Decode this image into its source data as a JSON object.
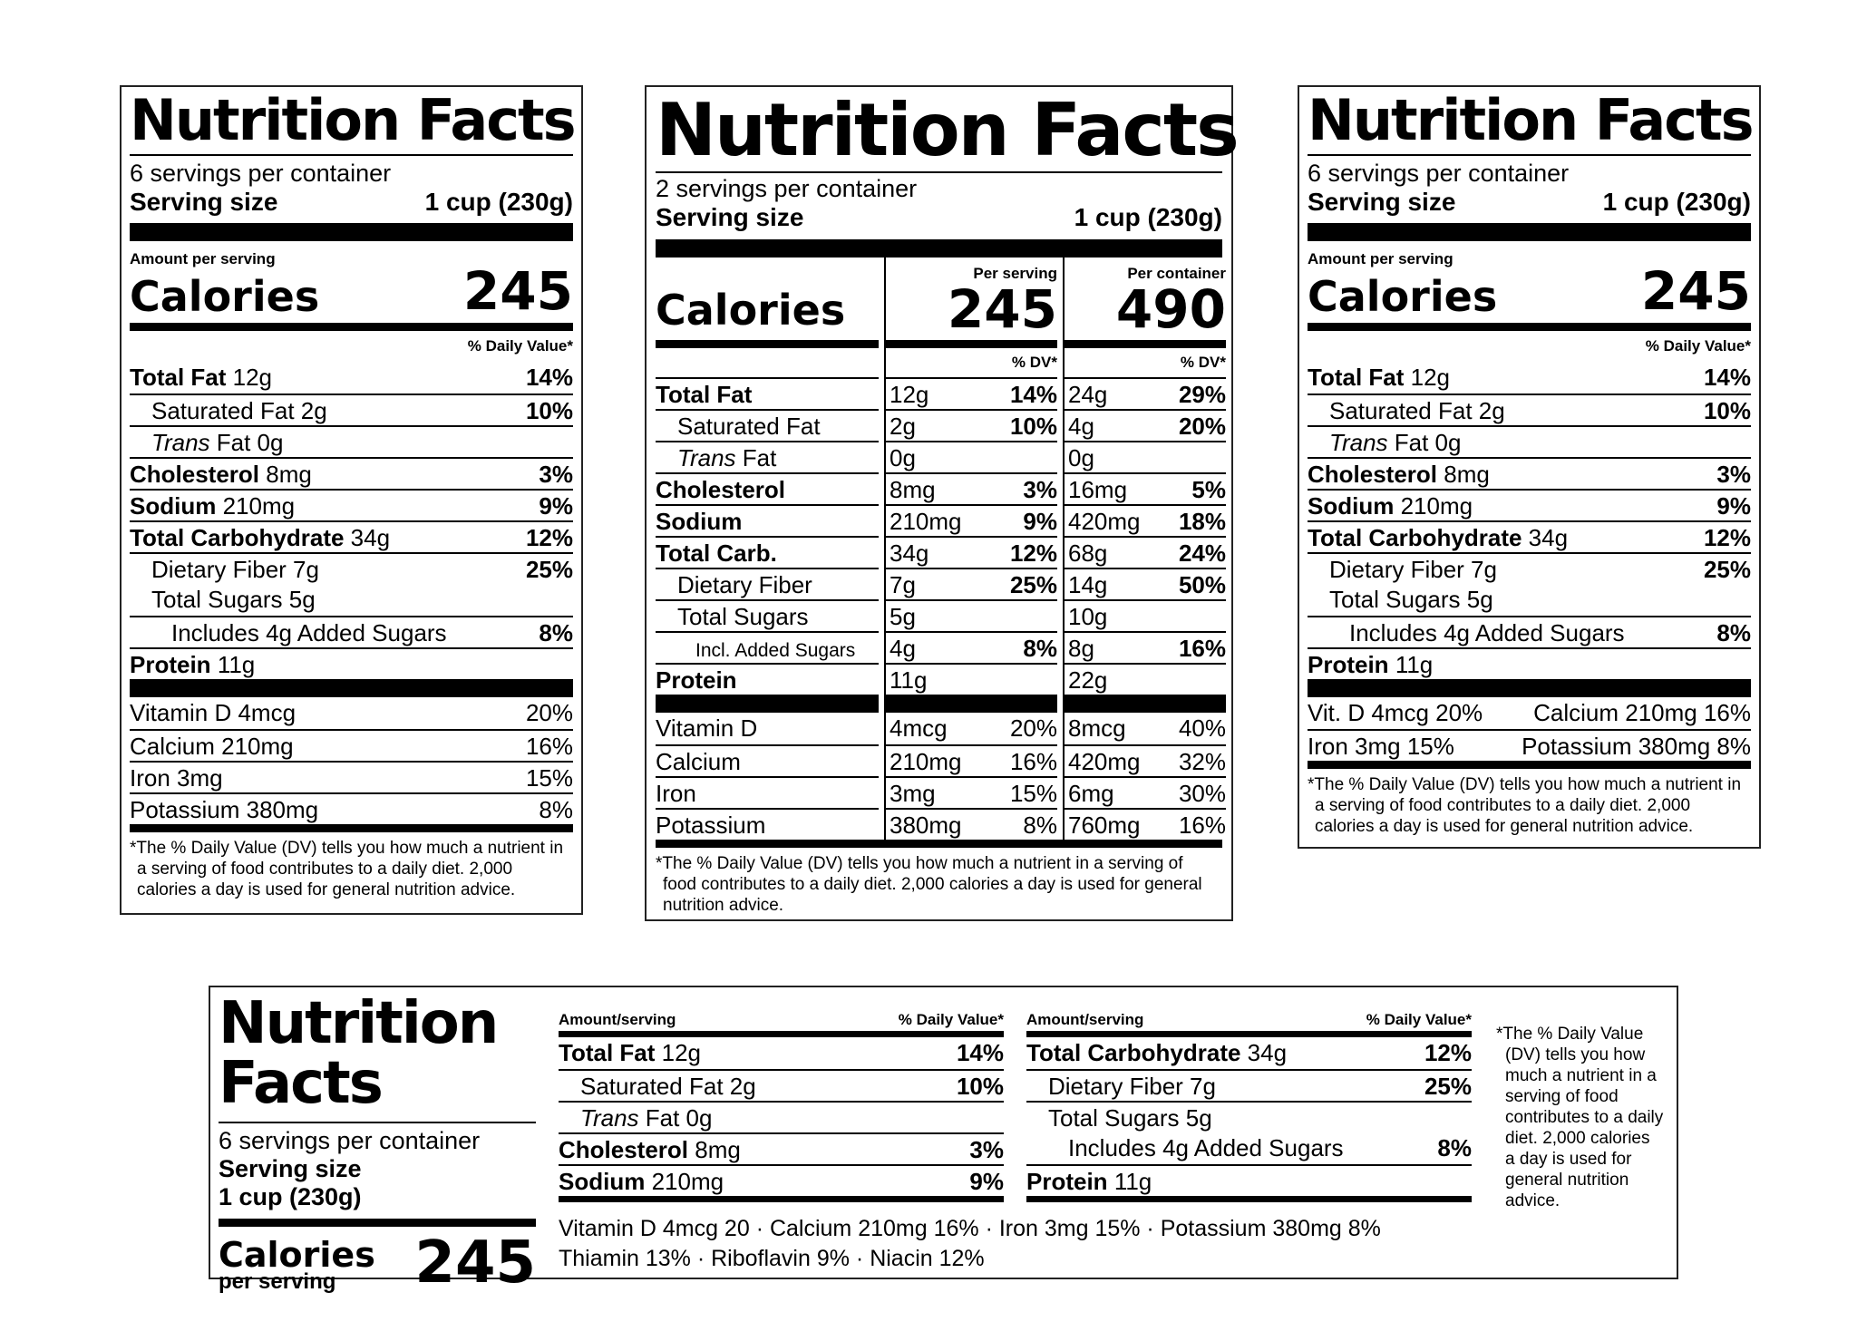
{
  "labels": {
    "standard": {
      "title": "Nutrition Facts",
      "servings": "6 servings per container",
      "serving_size_label": "Serving size",
      "serving_size_value": "1 cup (230g)",
      "amount_per_serving": "Amount per serving",
      "calories_label": "Calories",
      "calories_value": "245",
      "dv_header": "% Daily Value*",
      "nutrients": [
        {
          "name": "Total Fat",
          "amount": "12g",
          "dv": "14%"
        },
        {
          "name": "Saturated Fat 2g",
          "amount": "",
          "dv": "10%"
        },
        {
          "name": "Trans",
          "amount": "Fat 0g",
          "dv": ""
        },
        {
          "name": "Cholesterol",
          "amount": "8mg",
          "dv": "3%"
        },
        {
          "name": "Sodium",
          "amount": "210mg",
          "dv": "9%"
        },
        {
          "name": "Total Carbohydrate",
          "amount": "34g",
          "dv": "12%"
        },
        {
          "name": "Dietary Fiber 7g",
          "amount": "",
          "dv": "25%"
        },
        {
          "name": "Total Sugars 5g",
          "amount": "",
          "dv": ""
        },
        {
          "name": "Includes 4g Added Sugars",
          "amount": "",
          "dv": "8%"
        },
        {
          "name": "Protein",
          "amount": "11g",
          "dv": ""
        }
      ],
      "vitamins": [
        {
          "name": "Vitamin D 4mcg",
          "dv": "20%"
        },
        {
          "name": "Calcium 210mg",
          "dv": "16%"
        },
        {
          "name": "Iron 3mg",
          "dv": "15%"
        },
        {
          "name": "Potassium 380mg",
          "dv": "8%"
        }
      ],
      "vitamins_compact": [
        {
          "left": "Vit. D 4mcg 20%",
          "right": "Calcium 210mg 16%"
        },
        {
          "left": "Iron 3mg 15%",
          "right": "Potassium 380mg 8%"
        }
      ],
      "footnote": "*The % Daily Value (DV) tells you how much a nutrient in a serving of food contributes to a daily diet. 2,000 calories a day is used for general nutrition advice."
    },
    "dual": {
      "title": "Nutrition Facts",
      "servings": "2 servings per container",
      "serving_size_label": "Serving size",
      "serving_size_value": "1 cup (230g)",
      "per_serving": "Per serving",
      "per_container": "Per container",
      "calories_label": "Calories",
      "calories_serving": "245",
      "calories_container": "490",
      "dv_short": "% DV*",
      "rows": [
        {
          "name": "Total Fat",
          "a1": "12g",
          "d1": "14%",
          "a2": "24g",
          "d2": "29%"
        },
        {
          "name": "Saturated Fat",
          "a1": "2g",
          "d1": "10%",
          "a2": "4g",
          "d2": "20%"
        },
        {
          "name": "Trans",
          "suffix": " Fat",
          "a1": "0g",
          "d1": "",
          "a2": "0g",
          "d2": ""
        },
        {
          "name": "Cholesterol",
          "a1": "8mg",
          "d1": "3%",
          "a2": "16mg",
          "d2": "5%"
        },
        {
          "name": "Sodium",
          "a1": "210mg",
          "d1": "9%",
          "a2": "420mg",
          "d2": "18%"
        },
        {
          "name": "Total Carb.",
          "a1": "34g",
          "d1": "12%",
          "a2": "68g",
          "d2": "24%"
        },
        {
          "name": "Dietary Fiber",
          "a1": "7g",
          "d1": "25%",
          "a2": "14g",
          "d2": "50%"
        },
        {
          "name": "Total Sugars",
          "a1": "5g",
          "d1": "",
          "a2": "10g",
          "d2": ""
        },
        {
          "name": "Incl. Added Sugars",
          "a1": "4g",
          "d1": "8%",
          "a2": "8g",
          "d2": "16%"
        },
        {
          "name": "Protein",
          "a1": "11g",
          "d1": "",
          "a2": "22g",
          "d2": ""
        }
      ],
      "vitamins": [
        {
          "name": "Vitamin D",
          "a1": "4mcg",
          "d1": "20%",
          "a2": "8mcg",
          "d2": "40%"
        },
        {
          "name": "Calcium",
          "a1": "210mg",
          "d1": "16%",
          "a2": "420mg",
          "d2": "32%"
        },
        {
          "name": "Iron",
          "a1": "3mg",
          "d1": "15%",
          "a2": "6mg",
          "d2": "30%"
        },
        {
          "name": "Potassium",
          "a1": "380mg",
          "d1": "8%",
          "a2": "760mg",
          "d2": "16%"
        }
      ],
      "footnote": "*The % Daily Value (DV) tells you how much a nutrient in a serving of food contributes to a daily diet. 2,000 calories a day is used for general nutrition advice."
    },
    "tabular": {
      "title_line1": "Nutrition",
      "title_line2": "Facts",
      "servings": "6 servings per container",
      "serving_size_label": "Serving size",
      "serving_size_value": "1 cup (230g)",
      "calories_label": "Calories",
      "calories_sub": "per serving",
      "calories_value": "245",
      "col_amount": "Amount/serving",
      "col_dv": "% Daily Value*",
      "left_col": [
        {
          "name": "Total Fat",
          "amount": "12g",
          "dv": "14%"
        },
        {
          "name": "Saturated Fat 2g",
          "amount": "",
          "dv": "10%"
        },
        {
          "name": "Trans",
          "amount": "Fat 0g",
          "dv": ""
        },
        {
          "name": "Cholesterol",
          "amount": "8mg",
          "dv": "3%"
        },
        {
          "name": "Sodium",
          "amount": "210mg",
          "dv": "9%"
        }
      ],
      "right_col": [
        {
          "name": "Total Carbohydrate",
          "amount": "34g",
          "dv": "12%"
        },
        {
          "name": "Dietary Fiber 7g",
          "amount": "",
          "dv": "25%"
        },
        {
          "name": "Total Sugars 5g",
          "amount": "",
          "dv": ""
        },
        {
          "name": "Includes 4g Added Sugars",
          "amount": "",
          "dv": "8%"
        },
        {
          "name": "Protein",
          "amount": "11g",
          "dv": ""
        }
      ],
      "vitamins_line1": "Vitamin D 4mcg 20 · Calcium 210mg 16% · Iron 3mg 15% · Potassium 380mg 8%",
      "vitamins_line2": "Thiamin 13% · Riboflavin 9% · Niacin 12%",
      "footnote": "*The % Daily Value (DV) tells you how much a nutrient in a serving of food contributes to a daily diet. 2,000 calories a day is used for general nutrition advice."
    }
  }
}
